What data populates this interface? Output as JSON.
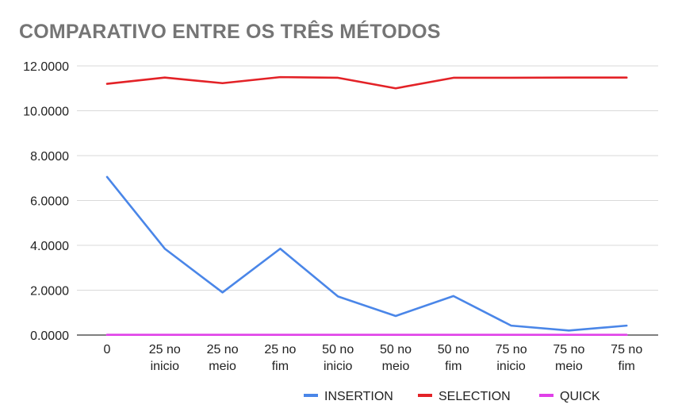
{
  "chart_data": {
    "type": "line",
    "title": "COMPARATIVO ENTRE OS TRÊS MÉTODOS",
    "xlabel": "",
    "ylabel": "",
    "categories": [
      [
        "0"
      ],
      [
        "25 no",
        "inicio"
      ],
      [
        "25 no",
        "meio"
      ],
      [
        "25 no",
        "fim"
      ],
      [
        "50 no",
        "inicio"
      ],
      [
        "50 no",
        "meio"
      ],
      [
        "50 no",
        "fim"
      ],
      [
        "75 no",
        "inicio"
      ],
      [
        "75 no",
        "meio"
      ],
      [
        "75 no",
        "fim"
      ]
    ],
    "yticks": [
      "0.0000",
      "2.0000",
      "4.0000",
      "6.0000",
      "8.0000",
      "10.0000",
      "12.0000"
    ],
    "ylim": [
      0,
      12
    ],
    "grid": true,
    "legend_position": "bottom",
    "series": [
      {
        "name": "INSERTION",
        "color": "#4a86e8",
        "values": [
          7.05,
          3.85,
          1.9,
          3.85,
          1.72,
          0.85,
          1.74,
          0.42,
          0.2,
          0.42
        ]
      },
      {
        "name": "SELECTION",
        "color": "#e32227",
        "values": [
          11.2,
          11.48,
          11.23,
          11.5,
          11.47,
          11.0,
          11.47,
          11.47,
          11.48,
          11.48
        ]
      },
      {
        "name": "QUICK",
        "color": "#e040e8",
        "values": [
          0.01,
          0.01,
          0.01,
          0.01,
          0.01,
          0.01,
          0.01,
          0.01,
          0.01,
          0.01
        ]
      }
    ]
  }
}
